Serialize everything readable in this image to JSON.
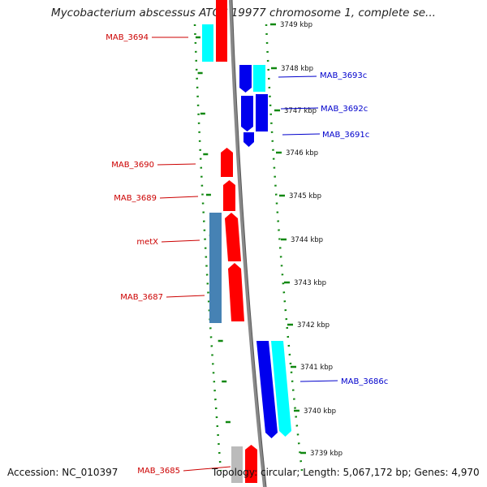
{
  "title": "Mycobacterium abscessus ATCC 19977 chromosome 1, complete se...",
  "footer": {
    "accession": "Accession: NC_010397",
    "summary": "Topology: circular; Length: 5,067,172 bp; Genes: 4,970"
  },
  "colors": {
    "red": "#ff0000",
    "blue": "#0000ee",
    "cyan": "#00ffff",
    "steel": "#4682b4",
    "gray": "#bbbbbb",
    "ruler": "#118811",
    "backbone": "#888888",
    "label_red": "#cc0000",
    "label_blue": "#0000cc"
  },
  "ticks": [
    "3749 kbp",
    "3748 kbp",
    "3747 kbp",
    "3746 kbp",
    "3745 kbp",
    "3744 kbp",
    "3743 kbp",
    "3742 kbp",
    "3741 kbp",
    "3740 kbp",
    "3739 kbp"
  ],
  "left_labels": [
    "MAB_3694",
    "MAB_3690",
    "MAB_3689",
    "metX",
    "MAB_3687",
    "MAB_3685"
  ],
  "right_labels": [
    "MAB_3693c",
    "MAB_3692c",
    "MAB_3691c",
    "MAB_3686c"
  ]
}
